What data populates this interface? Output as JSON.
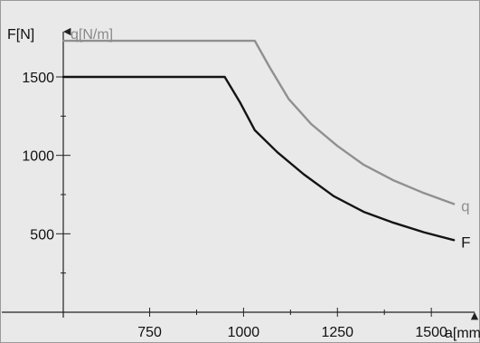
{
  "chart_data": {
    "type": "line",
    "title": "",
    "y_axis_left_label": "F[N]",
    "y_axis_right_label": "q[N/m]",
    "x_axis_label": "a[mm]",
    "x_ticks": [
      750,
      1000,
      1250,
      1500
    ],
    "x_tick_labels": [
      "750",
      "1000",
      "1250",
      "1500"
    ],
    "x_minor_ticks": [
      875,
      1125,
      1375
    ],
    "y_ticks": [
      500,
      1000,
      1500
    ],
    "y_tick_labels": [
      "500",
      "1000",
      "1500"
    ],
    "y_minor_ticks": [
      250,
      750,
      1250
    ],
    "xlim": [
      520,
      1620
    ],
    "ylim": [
      0,
      1800
    ],
    "grid": false,
    "series": [
      {
        "name": "q",
        "color": "#909090",
        "points": [
          [
            520,
            1730
          ],
          [
            1030,
            1730
          ],
          [
            1070,
            1560
          ],
          [
            1120,
            1360
          ],
          [
            1180,
            1200
          ],
          [
            1250,
            1060
          ],
          [
            1320,
            940
          ],
          [
            1400,
            840
          ],
          [
            1480,
            760
          ],
          [
            1560,
            690
          ]
        ]
      },
      {
        "name": "F",
        "color": "#141414",
        "points": [
          [
            520,
            1500
          ],
          [
            950,
            1500
          ],
          [
            990,
            1340
          ],
          [
            1030,
            1160
          ],
          [
            1090,
            1020
          ],
          [
            1160,
            880
          ],
          [
            1240,
            740
          ],
          [
            1320,
            640
          ],
          [
            1400,
            570
          ],
          [
            1480,
            510
          ],
          [
            1560,
            460
          ]
        ]
      }
    ]
  }
}
